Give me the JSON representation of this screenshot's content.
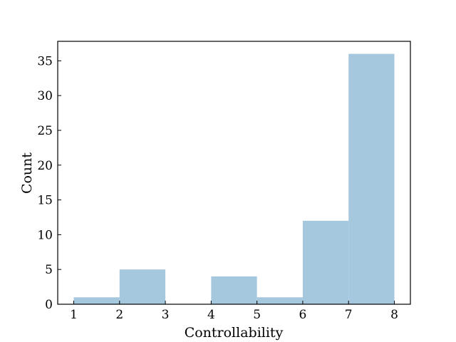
{
  "chart_data": {
    "type": "bar",
    "chart_subtype": "histogram",
    "xlabel": "Controllability",
    "ylabel": "Count",
    "xlim": [
      0.65,
      8.35
    ],
    "ylim": [
      0,
      37.8
    ],
    "xticks": [
      1,
      2,
      3,
      4,
      5,
      6,
      7,
      8
    ],
    "yticks": [
      0,
      5,
      10,
      15,
      20,
      25,
      30,
      35
    ],
    "bins": [
      {
        "x0": 1,
        "x1": 2,
        "count": 1
      },
      {
        "x0": 2,
        "x1": 3,
        "count": 5
      },
      {
        "x0": 3,
        "x1": 4,
        "count": 0
      },
      {
        "x0": 4,
        "x1": 5,
        "count": 4
      },
      {
        "x0": 5,
        "x1": 6,
        "count": 1
      },
      {
        "x0": 6,
        "x1": 7,
        "count": 12
      },
      {
        "x0": 7,
        "x1": 8,
        "count": 36
      }
    ],
    "bar_color": "#a6c8df",
    "grid": false,
    "legend": "none",
    "tick_direction": "in"
  }
}
